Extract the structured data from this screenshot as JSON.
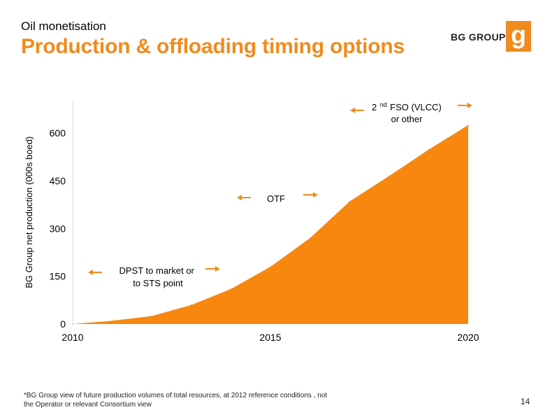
{
  "header": {
    "subtitle": "Oil monetisation",
    "title": "Production & offloading timing options",
    "brand_text": "BG GROUP",
    "brand_logo_letter": "g"
  },
  "colors": {
    "accent": "#f08b1d",
    "area_fill": "#f7870f",
    "text": "#000000"
  },
  "chart_data": {
    "type": "area",
    "title": "",
    "xlabel": "",
    "ylabel": "BG Group net production (000s boed)",
    "x": [
      2010,
      2011,
      2012,
      2013,
      2014,
      2015,
      2016,
      2017,
      2018,
      2019,
      2020
    ],
    "series": [
      {
        "values": [
          0,
          10,
          25,
          60,
          110,
          180,
          270,
          385,
          465,
          548,
          625
        ]
      }
    ],
    "xlim": [
      2010,
      2020
    ],
    "ylim": [
      0,
      700
    ],
    "xticks": [
      "2010",
      "2015",
      "2020"
    ],
    "yticks": [
      "0",
      "150",
      "300",
      "450",
      "600"
    ],
    "grid": false,
    "legend": "none",
    "annotations": [
      {
        "id": "dpst",
        "lines": [
          "DPST to market or",
          "to STS point"
        ]
      },
      {
        "id": "otf",
        "lines": [
          "OTF"
        ]
      },
      {
        "id": "fso",
        "lines": [
          "2",
          "nd",
          " FSO (VLCC)",
          "or other"
        ]
      }
    ]
  },
  "footnote": "*BG Group view of future production volumes of total resources, at 2012 reference conditions , not the Operator or relevant Consortium view",
  "page_number": "14"
}
